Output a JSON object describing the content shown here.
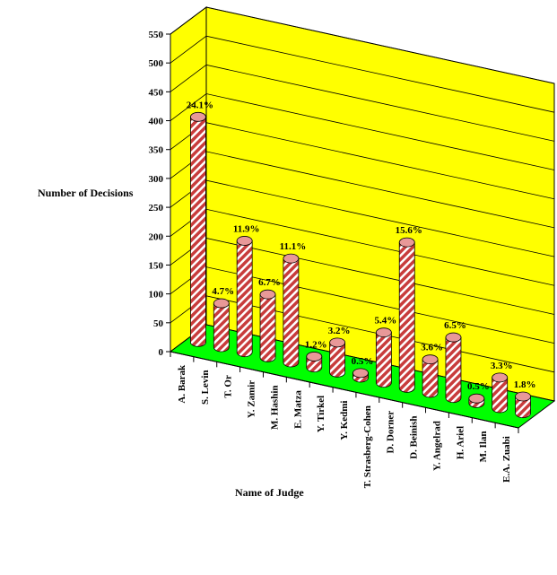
{
  "chart_data": {
    "type": "bar",
    "title": "",
    "xlabel": "Name of Judge",
    "ylabel": "Number of Decisions",
    "ylim": [
      0,
      550
    ],
    "yticks": [
      0,
      50,
      100,
      150,
      200,
      250,
      300,
      350,
      400,
      450,
      500,
      550
    ],
    "grid": true,
    "categories": [
      "A. Barak",
      "S. Levin",
      "T. Or",
      "Y. Zamir",
      "M. Hashin",
      "E. Matza",
      "Y. Tirkel",
      "Y. Kedmi",
      "T. Strasberg-Cohen",
      "D. Dorner",
      "D. Beinish",
      "Y. Angelrad",
      "H. Ariel",
      "M. Ilan",
      "E.A. Zuabi"
    ],
    "values": [
      390,
      76,
      193,
      109,
      180,
      19,
      52,
      8,
      87,
      252,
      58,
      105,
      8,
      53,
      29
    ],
    "data_labels": [
      "24.1%",
      "4.7%",
      "11.9%",
      "6.7%",
      "11.1%",
      "1.2%",
      "3.2%",
      "0.5%",
      "5.4%",
      "15.6%",
      "3.6%",
      "6.5%",
      "0.5%",
      "3.3%",
      "1.8%"
    ],
    "colors": {
      "wall": "#ffff00",
      "floor": "#00ff00",
      "bar": "#cc3333",
      "stripe": "#ffffff",
      "grid": "#000000"
    }
  }
}
